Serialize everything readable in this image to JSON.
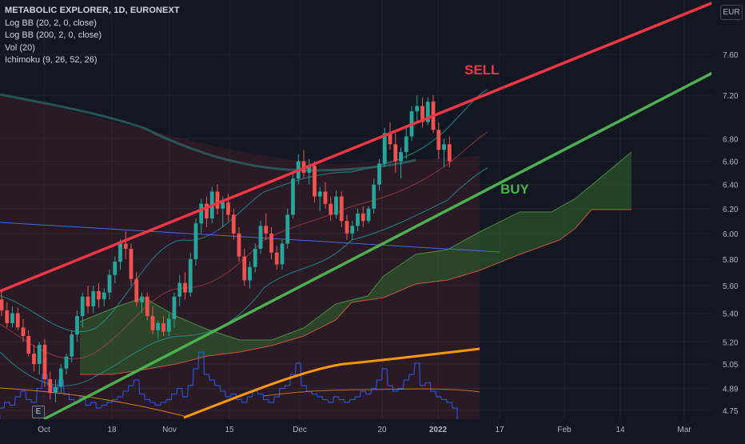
{
  "legend": {
    "title": "METABOLIC EXPLORER, 1D, EURONEXT",
    "lines": [
      "Log BB (20, 2, 0, close)",
      "Log BB (200, 2, 0, close)",
      "Vol (20)",
      "Ichimoku (9, 26, 52, 26)"
    ]
  },
  "currency": "EUR",
  "e_badge": "E",
  "colors": {
    "background": "#131722",
    "grid": "#1f2330",
    "text": "#b2b5be",
    "up": "#26a69a",
    "down": "#ef5350",
    "sell_line": "#f23645",
    "buy_line": "#4caf50",
    "bb20": "#2196f3",
    "bb200": "#2e7d78",
    "orange": "#ff9800",
    "cloud_green": "#2e5a2a",
    "cloud_red": "#5a2328"
  },
  "chart_data": {
    "type": "candlestick",
    "title": "METABOLIC EXPLORER, 1D, EURONEXT",
    "price_scale": "log",
    "currency": "EUR",
    "y_ticks": [
      4.75,
      4.89,
      5.05,
      5.2,
      5.4,
      5.6,
      5.8,
      6.0,
      6.2,
      6.4,
      6.6,
      6.8,
      7.2,
      7.6
    ],
    "x_ticks": [
      "Oct",
      "18",
      "Nov",
      "15",
      "Dec",
      "20",
      "2022",
      "17",
      "Feb",
      "14",
      "Mar"
    ],
    "ylim": [
      4.72,
      8.05
    ],
    "grid": true,
    "annotations": [
      {
        "text": "SELL",
        "color": "#f23645"
      },
      {
        "text": "BUY",
        "color": "#4caf50"
      }
    ],
    "trendlines": [
      {
        "name": "sell",
        "color": "#f23645",
        "from": [
          "Sep 20",
          5.56
        ],
        "to": [
          "Mar 4",
          8.22
        ]
      },
      {
        "name": "buy",
        "color": "#4caf50",
        "from": [
          "Oct 3",
          4.6
        ],
        "to": [
          "Mar 6",
          7.55
        ]
      }
    ],
    "candles": [
      {
        "o": 5.5,
        "h": 5.56,
        "l": 5.38,
        "c": 5.42
      },
      {
        "o": 5.42,
        "h": 5.48,
        "l": 5.3,
        "c": 5.33
      },
      {
        "o": 5.33,
        "h": 5.45,
        "l": 5.3,
        "c": 5.4
      },
      {
        "o": 5.4,
        "h": 5.44,
        "l": 5.28,
        "c": 5.3
      },
      {
        "o": 5.3,
        "h": 5.36,
        "l": 5.2,
        "c": 5.24
      },
      {
        "o": 5.24,
        "h": 5.28,
        "l": 5.1,
        "c": 5.12
      },
      {
        "o": 5.12,
        "h": 5.18,
        "l": 5.0,
        "c": 5.05
      },
      {
        "o": 5.05,
        "h": 5.2,
        "l": 4.98,
        "c": 5.18
      },
      {
        "o": 5.18,
        "h": 5.22,
        "l": 4.9,
        "c": 4.95
      },
      {
        "o": 4.95,
        "h": 5.0,
        "l": 4.82,
        "c": 4.86
      },
      {
        "o": 4.86,
        "h": 4.95,
        "l": 4.8,
        "c": 4.9
      },
      {
        "o": 4.9,
        "h": 5.05,
        "l": 4.86,
        "c": 5.02
      },
      {
        "o": 5.02,
        "h": 5.12,
        "l": 4.98,
        "c": 5.1
      },
      {
        "o": 5.1,
        "h": 5.28,
        "l": 5.06,
        "c": 5.25
      },
      {
        "o": 5.25,
        "h": 5.42,
        "l": 5.2,
        "c": 5.38
      },
      {
        "o": 5.38,
        "h": 5.55,
        "l": 5.3,
        "c": 5.52
      },
      {
        "o": 5.52,
        "h": 5.6,
        "l": 5.4,
        "c": 5.45
      },
      {
        "o": 5.45,
        "h": 5.6,
        "l": 5.4,
        "c": 5.56
      },
      {
        "o": 5.56,
        "h": 5.62,
        "l": 5.44,
        "c": 5.5
      },
      {
        "o": 5.5,
        "h": 5.58,
        "l": 5.45,
        "c": 5.55
      },
      {
        "o": 5.55,
        "h": 5.72,
        "l": 5.5,
        "c": 5.68
      },
      {
        "o": 5.68,
        "h": 5.82,
        "l": 5.62,
        "c": 5.78
      },
      {
        "o": 5.78,
        "h": 5.95,
        "l": 5.72,
        "c": 5.92
      },
      {
        "o": 5.92,
        "h": 6.02,
        "l": 5.8,
        "c": 5.88
      },
      {
        "o": 5.88,
        "h": 5.92,
        "l": 5.6,
        "c": 5.65
      },
      {
        "o": 5.65,
        "h": 5.7,
        "l": 5.45,
        "c": 5.48
      },
      {
        "o": 5.48,
        "h": 5.55,
        "l": 5.4,
        "c": 5.52
      },
      {
        "o": 5.52,
        "h": 5.55,
        "l": 5.35,
        "c": 5.38
      },
      {
        "o": 5.38,
        "h": 5.45,
        "l": 5.25,
        "c": 5.28
      },
      {
        "o": 5.28,
        "h": 5.35,
        "l": 5.22,
        "c": 5.33
      },
      {
        "o": 5.33,
        "h": 5.38,
        "l": 5.24,
        "c": 5.27
      },
      {
        "o": 5.27,
        "h": 5.4,
        "l": 5.24,
        "c": 5.36
      },
      {
        "o": 5.36,
        "h": 5.55,
        "l": 5.3,
        "c": 5.52
      },
      {
        "o": 5.52,
        "h": 5.68,
        "l": 5.45,
        "c": 5.62
      },
      {
        "o": 5.62,
        "h": 5.7,
        "l": 5.5,
        "c": 5.55
      },
      {
        "o": 5.55,
        "h": 5.85,
        "l": 5.52,
        "c": 5.8
      },
      {
        "o": 5.8,
        "h": 6.12,
        "l": 5.75,
        "c": 6.08
      },
      {
        "o": 6.08,
        "h": 6.28,
        "l": 6.0,
        "c": 6.24
      },
      {
        "o": 6.24,
        "h": 6.3,
        "l": 6.05,
        "c": 6.12
      },
      {
        "o": 6.12,
        "h": 6.38,
        "l": 6.08,
        "c": 6.34
      },
      {
        "o": 6.34,
        "h": 6.4,
        "l": 6.15,
        "c": 6.2
      },
      {
        "o": 6.2,
        "h": 6.3,
        "l": 6.05,
        "c": 6.25
      },
      {
        "o": 6.25,
        "h": 6.32,
        "l": 6.1,
        "c": 6.15
      },
      {
        "o": 6.15,
        "h": 6.2,
        "l": 5.95,
        "c": 6.0
      },
      {
        "o": 6.0,
        "h": 6.05,
        "l": 5.78,
        "c": 5.82
      },
      {
        "o": 5.82,
        "h": 5.88,
        "l": 5.6,
        "c": 5.64
      },
      {
        "o": 5.64,
        "h": 5.78,
        "l": 5.58,
        "c": 5.74
      },
      {
        "o": 5.74,
        "h": 5.92,
        "l": 5.7,
        "c": 5.88
      },
      {
        "o": 5.88,
        "h": 6.1,
        "l": 5.84,
        "c": 6.06
      },
      {
        "o": 6.06,
        "h": 6.16,
        "l": 5.95,
        "c": 6.0
      },
      {
        "o": 6.0,
        "h": 6.05,
        "l": 5.8,
        "c": 5.85
      },
      {
        "o": 5.85,
        "h": 5.9,
        "l": 5.72,
        "c": 5.76
      },
      {
        "o": 5.76,
        "h": 5.95,
        "l": 5.72,
        "c": 5.92
      },
      {
        "o": 5.92,
        "h": 6.2,
        "l": 5.88,
        "c": 6.15
      },
      {
        "o": 6.15,
        "h": 6.5,
        "l": 6.12,
        "c": 6.45
      },
      {
        "o": 6.45,
        "h": 6.66,
        "l": 6.4,
        "c": 6.6
      },
      {
        "o": 6.6,
        "h": 6.7,
        "l": 6.45,
        "c": 6.5
      },
      {
        "o": 6.5,
        "h": 6.62,
        "l": 6.4,
        "c": 6.56
      },
      {
        "o": 6.56,
        "h": 6.6,
        "l": 6.25,
        "c": 6.3
      },
      {
        "o": 6.3,
        "h": 6.38,
        "l": 6.18,
        "c": 6.34
      },
      {
        "o": 6.34,
        "h": 6.42,
        "l": 6.2,
        "c": 6.24
      },
      {
        "o": 6.24,
        "h": 6.3,
        "l": 6.1,
        "c": 6.15
      },
      {
        "o": 6.15,
        "h": 6.35,
        "l": 6.12,
        "c": 6.3
      },
      {
        "o": 6.3,
        "h": 6.34,
        "l": 6.05,
        "c": 6.1
      },
      {
        "o": 6.1,
        "h": 6.15,
        "l": 5.95,
        "c": 6.0
      },
      {
        "o": 6.0,
        "h": 6.1,
        "l": 5.95,
        "c": 6.06
      },
      {
        "o": 6.06,
        "h": 6.2,
        "l": 6.02,
        "c": 6.16
      },
      {
        "o": 6.16,
        "h": 6.22,
        "l": 6.05,
        "c": 6.1
      },
      {
        "o": 6.1,
        "h": 6.22,
        "l": 6.08,
        "c": 6.2
      },
      {
        "o": 6.2,
        "h": 6.45,
        "l": 6.16,
        "c": 6.4
      },
      {
        "o": 6.4,
        "h": 6.62,
        "l": 6.35,
        "c": 6.58
      },
      {
        "o": 6.58,
        "h": 6.9,
        "l": 6.55,
        "c": 6.85
      },
      {
        "o": 6.85,
        "h": 6.95,
        "l": 6.7,
        "c": 6.75
      },
      {
        "o": 6.75,
        "h": 6.85,
        "l": 6.5,
        "c": 6.6
      },
      {
        "o": 6.6,
        "h": 6.72,
        "l": 6.45,
        "c": 6.68
      },
      {
        "o": 6.68,
        "h": 6.9,
        "l": 6.62,
        "c": 6.82
      },
      {
        "o": 6.82,
        "h": 7.1,
        "l": 6.78,
        "c": 7.05
      },
      {
        "o": 7.05,
        "h": 7.2,
        "l": 6.95,
        "c": 7.1
      },
      {
        "o": 7.1,
        "h": 7.18,
        "l": 6.9,
        "c": 6.95
      },
      {
        "o": 6.95,
        "h": 7.18,
        "l": 6.92,
        "c": 7.14
      },
      {
        "o": 7.14,
        "h": 7.2,
        "l": 6.85,
        "c": 6.88
      },
      {
        "o": 6.88,
        "h": 6.95,
        "l": 6.62,
        "c": 6.7
      },
      {
        "o": 6.7,
        "h": 6.8,
        "l": 6.55,
        "c": 6.75
      },
      {
        "o": 6.75,
        "h": 6.82,
        "l": 6.55,
        "c": 6.6
      }
    ]
  }
}
